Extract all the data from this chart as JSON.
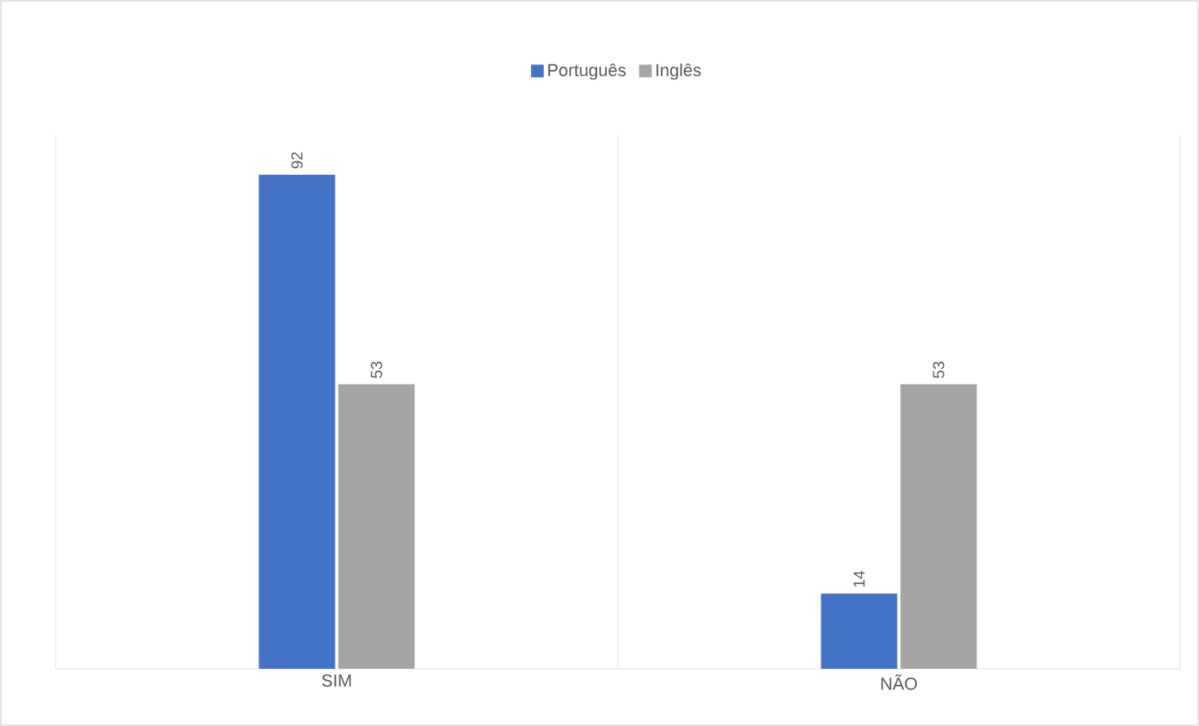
{
  "chart_data": {
    "type": "bar",
    "categories": [
      "SIM",
      "NÃO"
    ],
    "series": [
      {
        "name": "Português",
        "color": "#4472c4",
        "values": [
          92,
          14
        ]
      },
      {
        "name": "Inglês",
        "color": "#a5a5a5",
        "values": [
          53,
          53
        ]
      }
    ],
    "data_labels": true,
    "legend": "top"
  }
}
